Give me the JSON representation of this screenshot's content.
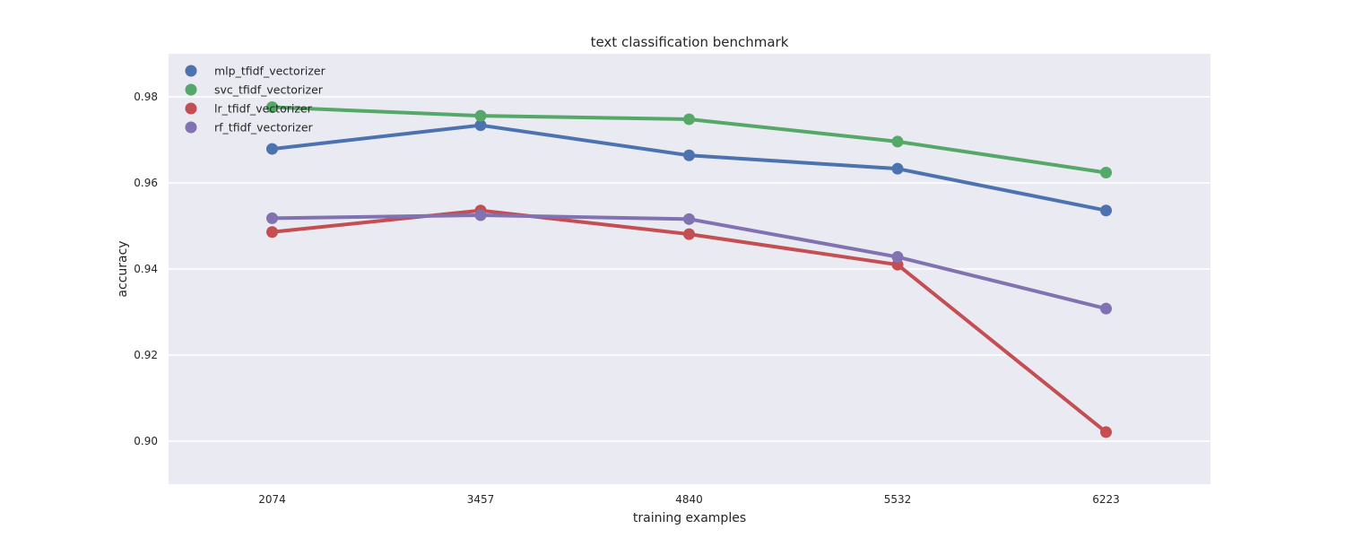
{
  "chart_data": {
    "type": "line",
    "title": "text classification benchmark",
    "xlabel": "training examples",
    "ylabel": "accuracy",
    "categories": [
      "2074",
      "3457",
      "4840",
      "5532",
      "6223"
    ],
    "ylim": [
      0.89,
      0.99
    ],
    "yticks": [
      "0.90",
      "0.92",
      "0.94",
      "0.96",
      "0.98"
    ],
    "grid": true,
    "legend_position": "top-left",
    "series": [
      {
        "name": "mlp_tfidf_vectorizer",
        "color": "#4C72B0",
        "values": [
          0.9679,
          0.9734,
          0.9664,
          0.9633,
          0.9536
        ]
      },
      {
        "name": "svc_tfidf_vectorizer",
        "color": "#55A868",
        "values": [
          0.9776,
          0.9756,
          0.9748,
          0.9696,
          0.9624
        ]
      },
      {
        "name": "lr_tfidf_vectorizer",
        "color": "#C44E52",
        "values": [
          0.9486,
          0.9536,
          0.9481,
          0.941,
          0.9021
        ]
      },
      {
        "name": "rf_tfidf_vectorizer",
        "color": "#8172B2",
        "values": [
          0.9518,
          0.9525,
          0.9516,
          0.9428,
          0.9308
        ]
      }
    ]
  }
}
